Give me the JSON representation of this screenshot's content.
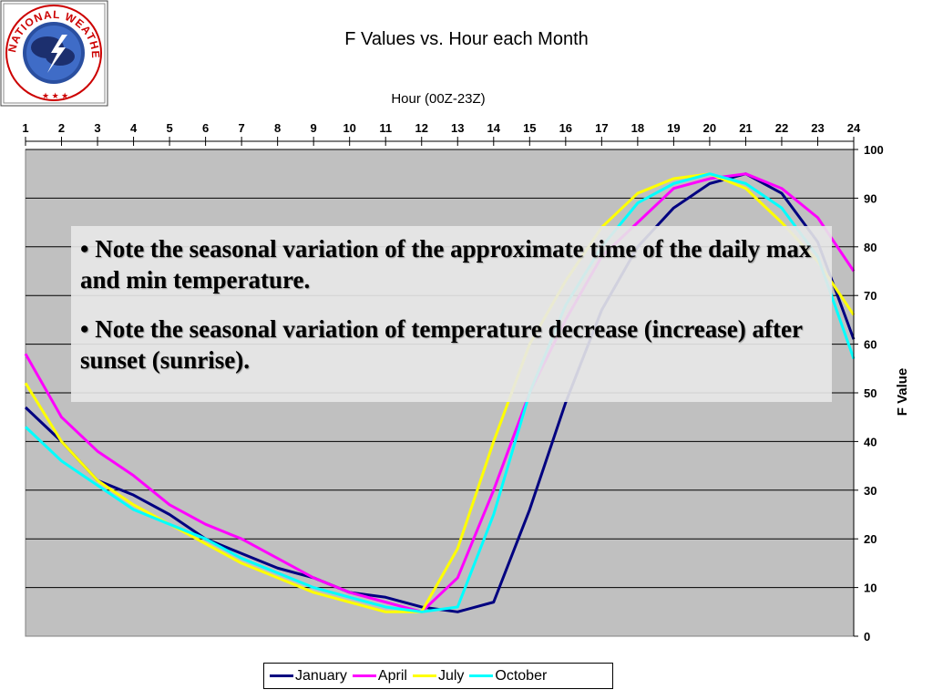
{
  "logo": {
    "text": "NATIONAL WEATHER SERVICE",
    "icon": "nws-logo-icon"
  },
  "chart_data": {
    "type": "line",
    "title": "F Values vs. Hour each Month",
    "xlabel": "Hour (00Z-23Z)",
    "ylabel": "F Value",
    "x": [
      1,
      2,
      3,
      4,
      5,
      6,
      7,
      8,
      9,
      10,
      11,
      12,
      13,
      14,
      15,
      16,
      17,
      18,
      19,
      20,
      21,
      22,
      23,
      24
    ],
    "xlim": [
      1,
      24
    ],
    "ylim": [
      0,
      100
    ],
    "yticks": [
      0,
      10,
      20,
      30,
      40,
      50,
      60,
      70,
      80,
      90,
      100
    ],
    "grid": true,
    "legend_position": "bottom",
    "plot_background": "#c0c0c0",
    "series": [
      {
        "name": "January",
        "color": "#000080",
        "values": [
          47,
          40,
          32,
          29,
          25,
          20,
          17,
          14,
          12,
          9,
          8,
          6,
          5,
          7,
          26,
          48,
          67,
          80,
          88,
          93,
          95,
          91,
          81,
          61
        ]
      },
      {
        "name": "April",
        "color": "#ff00ff",
        "values": [
          58,
          45,
          38,
          33,
          27,
          23,
          20,
          16,
          12,
          9,
          7,
          5,
          12,
          30,
          50,
          65,
          78,
          85,
          92,
          94,
          95,
          92,
          86,
          75
        ]
      },
      {
        "name": "July",
        "color": "#ffff00",
        "values": [
          52,
          40,
          32,
          27,
          23,
          19,
          15,
          12,
          9,
          7,
          5,
          5,
          18,
          40,
          60,
          73,
          84,
          91,
          94,
          95,
          92,
          85,
          77,
          66
        ]
      },
      {
        "name": "October",
        "color": "#00ffff",
        "values": [
          43,
          36,
          31,
          26,
          23,
          20,
          16,
          13,
          10,
          8,
          6,
          5,
          6,
          25,
          50,
          68,
          80,
          89,
          93,
          95,
          93,
          88,
          78,
          57
        ]
      }
    ]
  },
  "notes": [
    "•  Note the seasonal variation of the approximate time of the daily max and min temperature.",
    "•  Note the seasonal variation of temperature decrease (increase) after sunset (sunrise)."
  ]
}
